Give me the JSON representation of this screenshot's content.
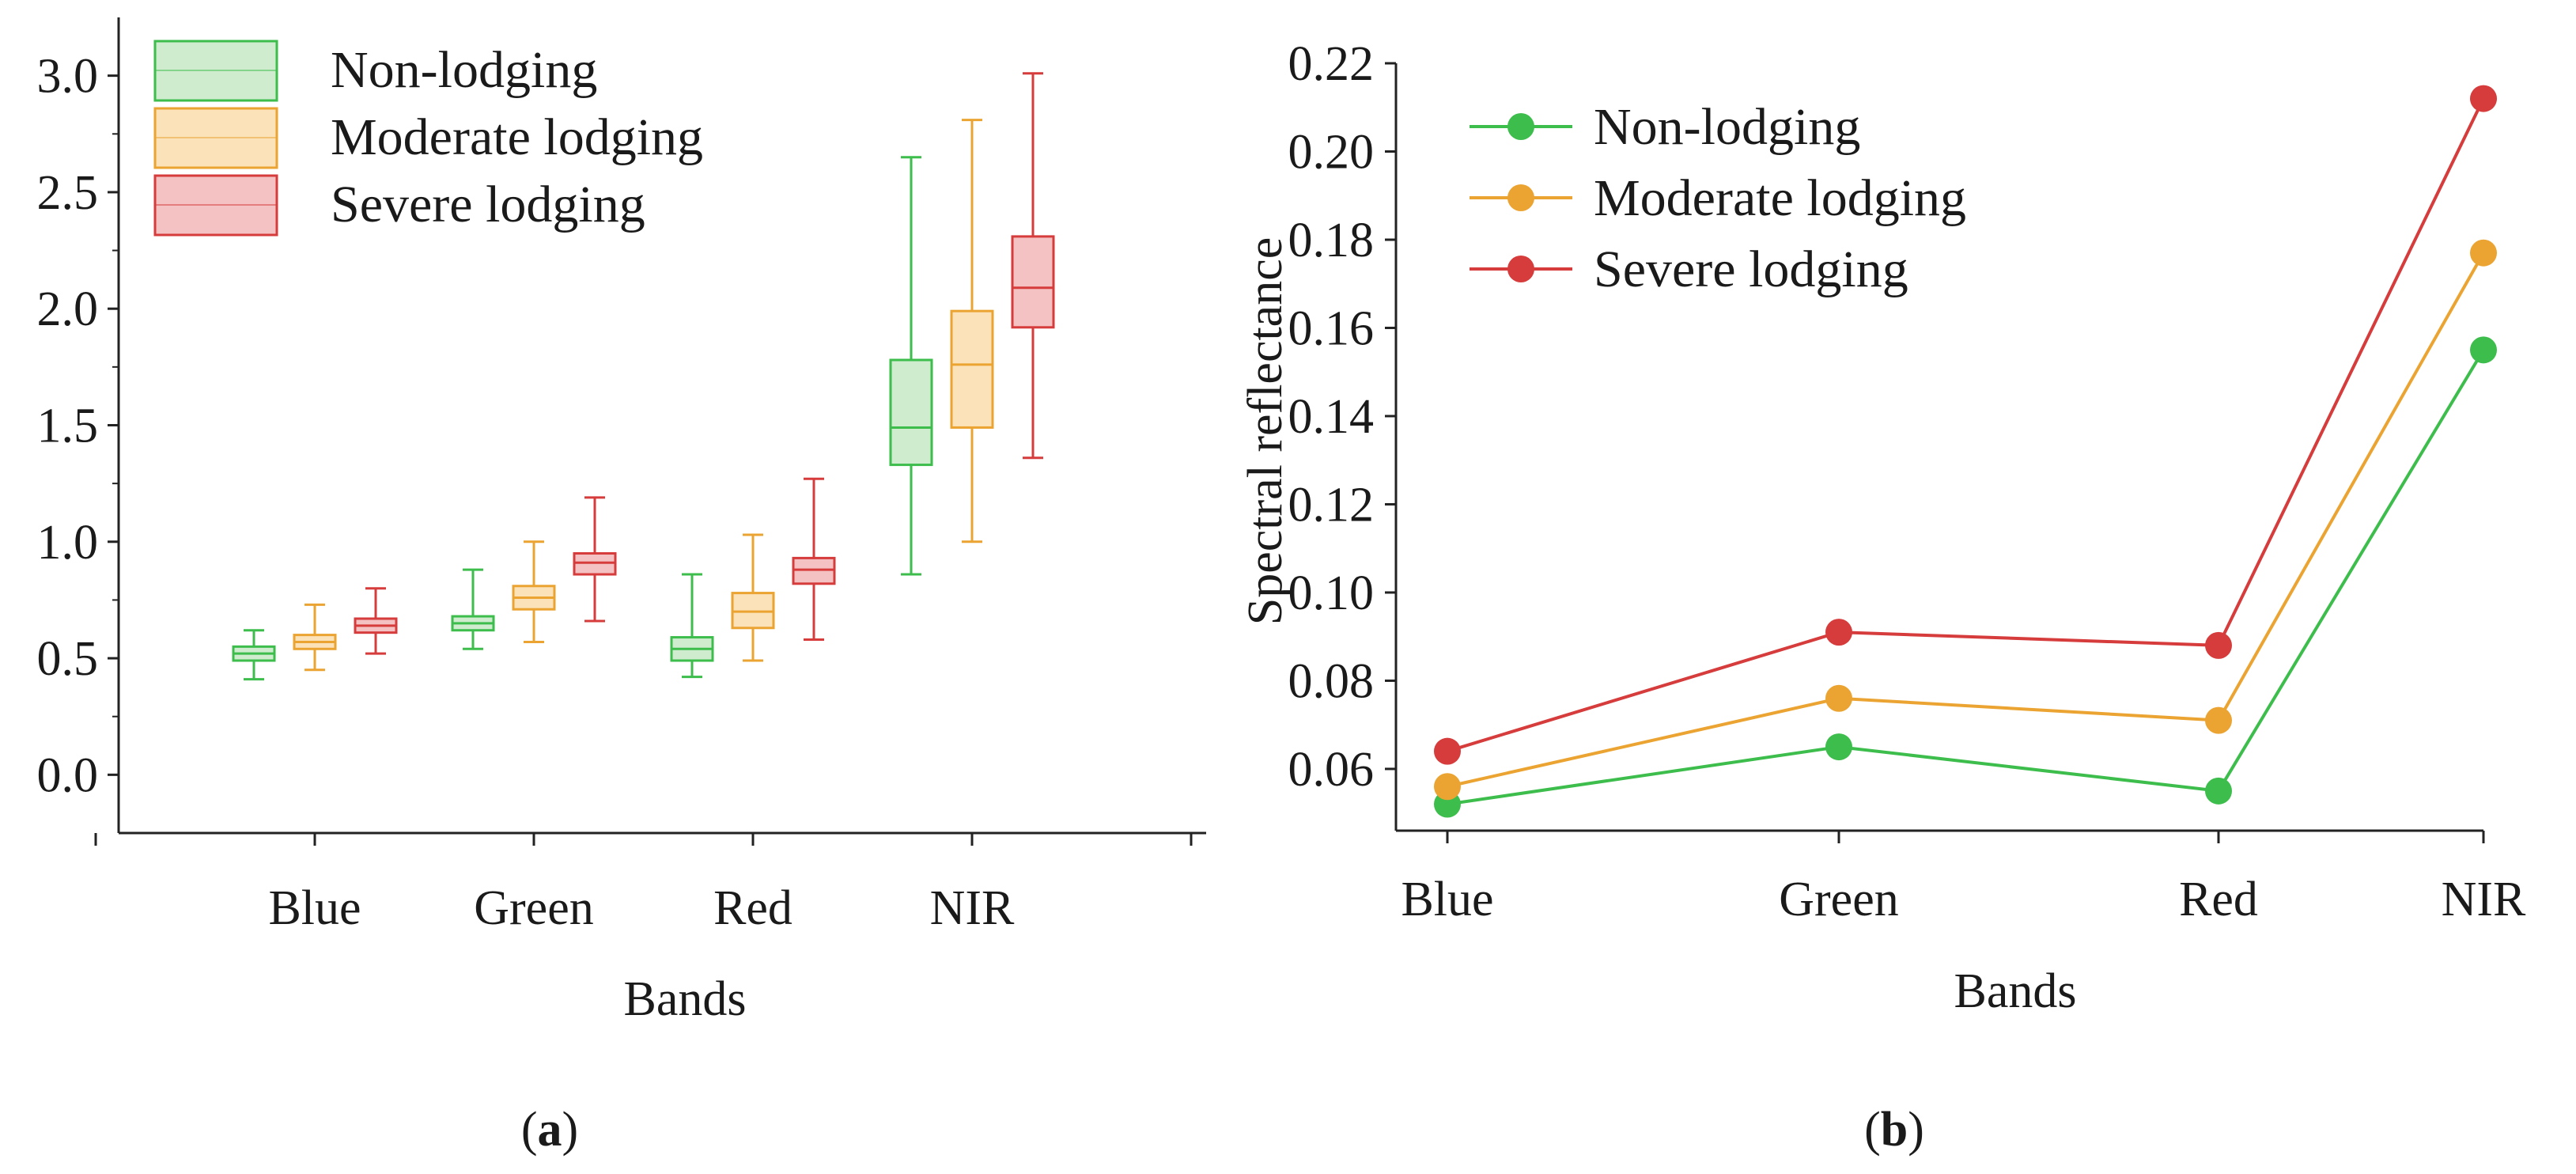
{
  "colors": {
    "non_lodging": "#3dbd4c",
    "moderate_lodging": "#eba432",
    "severe_lodging": "#d63c3c",
    "non_lodging_fill": "#cfeccf",
    "moderate_lodging_fill": "#fbe2b8",
    "severe_lodging_fill": "#f4c2c2"
  },
  "panels": {
    "a": {
      "prefix": "(",
      "letter": "a",
      "suffix": ")"
    },
    "b": {
      "prefix": "(",
      "letter": "b",
      "suffix": ")"
    }
  },
  "chart_data": [
    {
      "type": "box",
      "panel": "a",
      "title": "",
      "xlabel": "Bands",
      "ylabel": "",
      "ylim": [
        -0.25,
        3.25
      ],
      "yticks": [
        "0.0",
        "0.5",
        "1.0",
        "1.5",
        "2.0",
        "2.5",
        "3.0"
      ],
      "categories": [
        "Blue",
        "Green",
        "Red",
        "NIR"
      ],
      "legend_position": "top-left",
      "series": [
        {
          "name": "Non-lodging",
          "color_key": "non_lodging",
          "boxes": [
            {
              "min": 0.41,
              "q1": 0.49,
              "median": 0.52,
              "q3": 0.55,
              "max": 0.62
            },
            {
              "min": 0.54,
              "q1": 0.62,
              "median": 0.65,
              "q3": 0.68,
              "max": 0.88
            },
            {
              "min": 0.42,
              "q1": 0.49,
              "median": 0.54,
              "q3": 0.59,
              "max": 0.86
            },
            {
              "min": 0.86,
              "q1": 1.33,
              "median": 1.49,
              "q3": 1.78,
              "max": 2.65
            }
          ]
        },
        {
          "name": "Moderate lodging",
          "color_key": "moderate_lodging",
          "boxes": [
            {
              "min": 0.45,
              "q1": 0.54,
              "median": 0.57,
              "q3": 0.6,
              "max": 0.73
            },
            {
              "min": 0.57,
              "q1": 0.71,
              "median": 0.76,
              "q3": 0.81,
              "max": 1.0
            },
            {
              "min": 0.49,
              "q1": 0.63,
              "median": 0.7,
              "q3": 0.78,
              "max": 1.03
            },
            {
              "min": 1.0,
              "q1": 1.49,
              "median": 1.76,
              "q3": 1.99,
              "max": 2.81
            }
          ]
        },
        {
          "name": "Severe lodging",
          "color_key": "severe_lodging",
          "boxes": [
            {
              "min": 0.52,
              "q1": 0.61,
              "median": 0.64,
              "q3": 0.67,
              "max": 0.8
            },
            {
              "min": 0.66,
              "q1": 0.86,
              "median": 0.91,
              "q3": 0.95,
              "max": 1.19
            },
            {
              "min": 0.58,
              "q1": 0.82,
              "median": 0.88,
              "q3": 0.93,
              "max": 1.27
            },
            {
              "min": 1.36,
              "q1": 1.92,
              "median": 2.09,
              "q3": 2.31,
              "max": 3.01
            }
          ]
        }
      ]
    },
    {
      "type": "line",
      "panel": "b",
      "title": "",
      "xlabel": "Bands",
      "ylabel": "Spectral reflectance",
      "ylim": [
        0.046,
        0.22
      ],
      "yticks": [
        "0.06",
        "0.08",
        "0.10",
        "0.12",
        "0.14",
        "0.16",
        "0.18",
        "0.20",
        "0.22"
      ],
      "categories": [
        "Blue",
        "Green",
        "Red",
        "NIR"
      ],
      "legend_position": "top-left",
      "series": [
        {
          "name": "Non-lodging",
          "color_key": "non_lodging",
          "values": [
            0.052,
            0.065,
            0.055,
            0.155
          ]
        },
        {
          "name": "Moderate lodging",
          "color_key": "moderate_lodging",
          "values": [
            0.056,
            0.076,
            0.071,
            0.177
          ]
        },
        {
          "name": "Severe lodging",
          "color_key": "severe_lodging",
          "values": [
            0.064,
            0.091,
            0.088,
            0.212
          ]
        }
      ]
    }
  ]
}
